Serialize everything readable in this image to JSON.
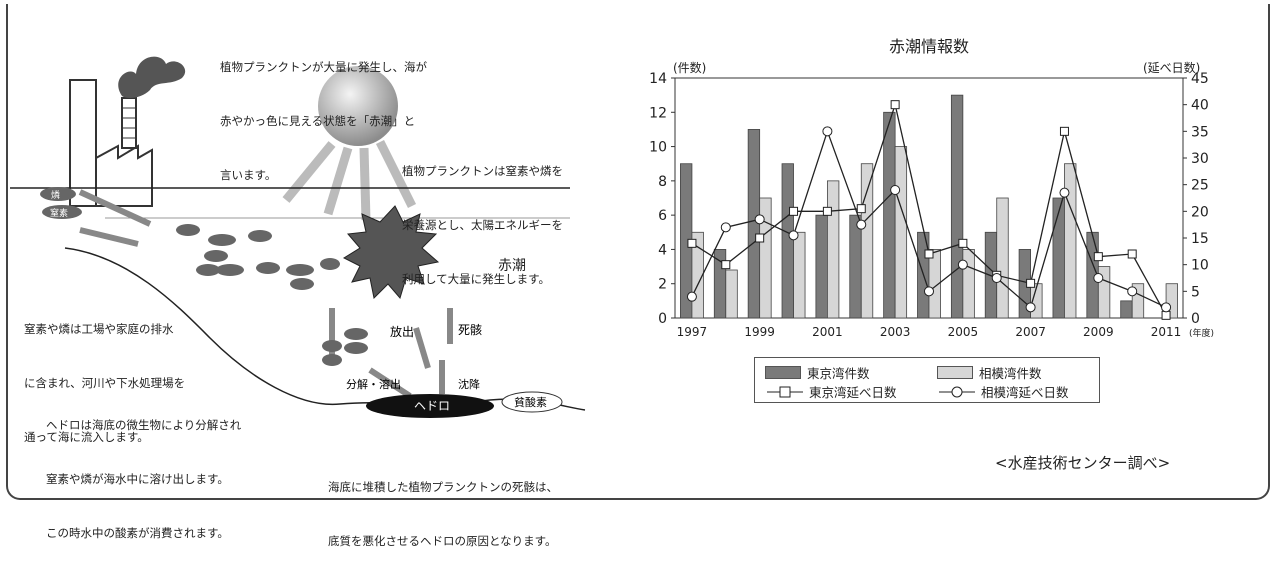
{
  "diagram": {
    "top_note": [
      "植物プランクトンが大量に発生し、海が",
      "赤やかっ色に見える状態を「赤潮」と",
      "言います。"
    ],
    "sun_note": [
      "植物プランクトンは窒素や燐を",
      "栄養源とし、太陽エネルギーを",
      "利用して大量に発生します。"
    ],
    "inflow_note": [
      "窒素や燐は工場や家庭の排水",
      "に含まれ、河川や下水処理場を",
      "通って海に流入します。"
    ],
    "hedoro_note": [
      "ヘドロは海底の微生物により分解され",
      "窒素や燐が海水中に溶け出します。",
      "この時水中の酸素が消費されます。"
    ],
    "bottom_note": [
      "海底に堆積した植物プランクトンの死骸は、",
      "底質を悪化させるヘドロの原因となります。"
    ],
    "akashio": "赤潮",
    "release": "放出",
    "death": "死骸",
    "decompose": "分解・溶出",
    "settle": "沈降",
    "hedoro": "ヘドロ",
    "anoxic": "貧酸素",
    "rin": "燐",
    "chisso": "窒素",
    "furigana_rin": "りん"
  },
  "chart_data": {
    "type": "bar",
    "title": "赤潮情報数",
    "y_left_label": "(件数)",
    "y_right_label": "(延べ日数)",
    "x_unit": "(年度)",
    "years": [
      1997,
      1998,
      1999,
      2000,
      2001,
      2002,
      2003,
      2004,
      2005,
      2006,
      2007,
      2008,
      2009,
      2010,
      2011
    ],
    "x_tick_labels": [
      "1997",
      "1999",
      "2001",
      "2003",
      "2005",
      "2007",
      "2009",
      "2011"
    ],
    "y_left_ticks": [
      0,
      2,
      4,
      6,
      8,
      10,
      12,
      14
    ],
    "y_right_ticks": [
      0,
      5,
      10,
      15,
      20,
      25,
      30,
      35,
      40,
      45
    ],
    "ylim_left": [
      0,
      14
    ],
    "ylim_right": [
      0,
      45
    ],
    "series": [
      {
        "name": "東京湾件数",
        "kind": "bar",
        "axis": "left",
        "color": "#7a7a7a",
        "values": [
          9,
          4,
          11,
          9,
          6,
          6,
          12,
          5,
          13,
          5,
          4,
          7,
          5,
          1,
          0
        ]
      },
      {
        "name": "相模湾件数",
        "kind": "bar",
        "axis": "left",
        "color": "#d6d6d6",
        "values": [
          5,
          2.8,
          7,
          5,
          8,
          9,
          10,
          4,
          4,
          7,
          2,
          9,
          3,
          2,
          2
        ]
      },
      {
        "name": "東京湾延べ日数",
        "kind": "line",
        "marker": "square",
        "axis": "right",
        "values": [
          14,
          10,
          15,
          20,
          20,
          20.5,
          40,
          12,
          14,
          8,
          6.5,
          35,
          11.5,
          12,
          0.5
        ]
      },
      {
        "name": "相模湾延べ日数",
        "kind": "line",
        "marker": "circle",
        "axis": "right",
        "values": [
          4,
          17,
          18.5,
          15.5,
          35,
          17.5,
          24,
          5,
          10,
          7.5,
          2,
          23.5,
          7.5,
          5,
          2
        ]
      }
    ],
    "grid": false,
    "legend_position": "bottom"
  },
  "source": "<水産技術センター調べ>"
}
